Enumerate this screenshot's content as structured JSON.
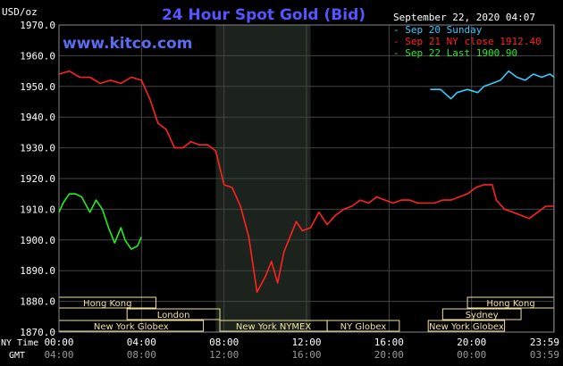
{
  "chart_data": {
    "type": "line",
    "title": "24 Hour Spot Gold (Bid)",
    "unit_label": "USD/oz",
    "watermark": "www.kitco.com",
    "timestamp": "September 22, 2020 04:07",
    "ylim": [
      1870,
      1970
    ],
    "yticks": [
      "1970.0",
      "1960.0",
      "1950.0",
      "1940.0",
      "1930.0",
      "1920.0",
      "1910.0",
      "1900.0",
      "1890.0",
      "1880.0",
      "1870.0"
    ],
    "ytick_values": [
      1970,
      1960,
      1950,
      1940,
      1930,
      1920,
      1910,
      1900,
      1890,
      1880,
      1870
    ],
    "xlim": [
      0,
      24
    ],
    "xticks_ny": [
      "00:00",
      "04:00",
      "08:00",
      "12:00",
      "16:00",
      "20:00",
      "23:59"
    ],
    "xticks_gmt": [
      "04:00",
      "08:00",
      "12:00",
      "16:00",
      "20:00",
      "00:00",
      "03:59"
    ],
    "xtick_positions": [
      0,
      4,
      8,
      12,
      16,
      20,
      23.983
    ],
    "axis_labels": {
      "ny": "NY Time",
      "gmt": "GMT"
    },
    "shaded_region": [
      7.6,
      12.2
    ],
    "colors": {
      "background": "#000000",
      "grid": "#444444",
      "axis_text": "#ffffff",
      "title": "#5555ff",
      "watermark": "#5a6cf0",
      "shade": "#1c221c",
      "session": "#f0e0a0"
    },
    "legend": [
      {
        "label": "- Sep 20 Sunday",
        "color": "#33ccff"
      },
      {
        "label": "- Sep 21 NY close 1912.40",
        "color": "#ff2222"
      },
      {
        "label": "- Sep 22 Last 1900.90",
        "color": "#22ee22"
      }
    ],
    "series": [
      {
        "name": "Sep 20 Sunday",
        "color": "#33ccff",
        "x": [
          18,
          18.5,
          19,
          19.3,
          19.8,
          20.3,
          20.6,
          21.0,
          21.4,
          21.8,
          22.2,
          22.6,
          23.0,
          23.4,
          23.8,
          24
        ],
        "y": [
          1949,
          1949,
          1946,
          1948,
          1949,
          1948,
          1950,
          1951,
          1952,
          1955,
          1953,
          1952,
          1954,
          1953,
          1954,
          1953
        ]
      },
      {
        "name": "Sep 21 NY close 1912.40",
        "color": "#ff2222",
        "x": [
          0,
          0.5,
          1,
          1.5,
          2,
          2.5,
          3,
          3.5,
          4,
          4.4,
          4.8,
          5.2,
          5.6,
          6.0,
          6.4,
          6.8,
          7.2,
          7.6,
          8.0,
          8.4,
          8.8,
          9.2,
          9.6,
          10.0,
          10.3,
          10.6,
          10.9,
          11.2,
          11.5,
          11.8,
          12.2,
          12.6,
          13.0,
          13.4,
          13.8,
          14.2,
          14.6,
          15.0,
          15.4,
          15.8,
          16.2,
          16.6,
          17.0,
          17.4,
          17.8,
          18.2,
          18.6,
          19.0,
          19.4,
          19.8,
          20.2,
          20.6,
          21.0,
          21.2,
          21.6,
          22.0,
          22.4,
          22.8,
          23.2,
          23.6,
          24
        ],
        "y": [
          1954,
          1955,
          1953,
          1953,
          1951,
          1952,
          1951,
          1953,
          1952,
          1946,
          1938,
          1936,
          1930,
          1930,
          1932,
          1931,
          1931,
          1929,
          1918,
          1917,
          1911,
          1901,
          1883,
          1888,
          1893,
          1886,
          1896,
          1901,
          1906,
          1903,
          1904,
          1909,
          1905,
          1908,
          1910,
          1911,
          1913,
          1912,
          1914,
          1913,
          1912,
          1913,
          1913,
          1912,
          1912,
          1912,
          1913,
          1913,
          1914,
          1915,
          1917,
          1918,
          1918,
          1913,
          1910,
          1909,
          1908,
          1907,
          1909,
          1911,
          1911
        ]
      },
      {
        "name": "Sep 22 Last 1900.90",
        "color": "#22ee22",
        "x": [
          0,
          0.2,
          0.5,
          0.8,
          1.1,
          1.5,
          1.8,
          2.1,
          2.4,
          2.7,
          3.0,
          3.2,
          3.5,
          3.8,
          4.0
        ],
        "y": [
          1909,
          1912,
          1915,
          1915,
          1914,
          1909,
          1913,
          1910,
          1904,
          1899,
          1904,
          1900,
          1897,
          1898,
          1901
        ]
      }
    ],
    "sessions": [
      {
        "label": "Hong Kong",
        "start": -0.1,
        "end": 4.7,
        "row": 0
      },
      {
        "label": "London",
        "start": 3.3,
        "end": 7.8,
        "row": 1
      },
      {
        "label": "New York Globex",
        "start": -0.1,
        "end": 7.0,
        "row": 2
      },
      {
        "label": "New York NYMEX",
        "start": 7.8,
        "end": 13.0,
        "row": 2
      },
      {
        "label": "NY Globex",
        "start": 13.0,
        "end": 16.5,
        "row": 2
      },
      {
        "label": "Hong Kong",
        "start": 19.8,
        "end": 24.2,
        "row": 0
      },
      {
        "label": "Sydney",
        "start": 18.6,
        "end": 22.4,
        "row": 1
      },
      {
        "label": "New York Globex",
        "start": 17.9,
        "end": 21.6,
        "row": 2
      }
    ]
  }
}
